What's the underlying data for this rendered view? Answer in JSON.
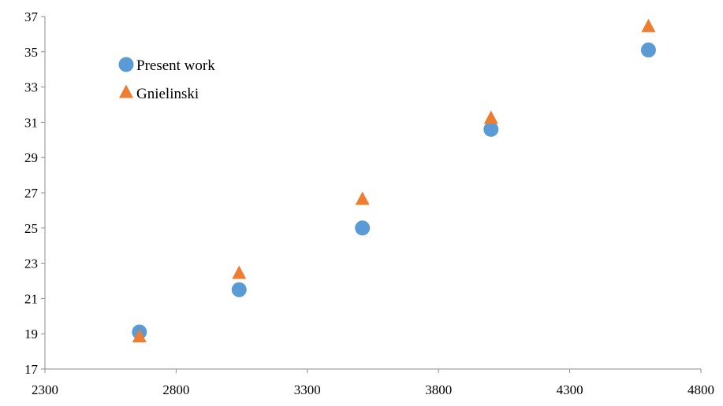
{
  "chart_data": {
    "type": "scatter",
    "title": "",
    "xlabel": "",
    "ylabel": "",
    "xlim": [
      2300,
      4800
    ],
    "ylim": [
      17,
      37
    ],
    "x_ticks": [
      "2300",
      "2800",
      "3300",
      "3800",
      "4300",
      "4800"
    ],
    "y_ticks": [
      "17",
      "19",
      "21",
      "23",
      "25",
      "27",
      "29",
      "31",
      "33",
      "35",
      "37"
    ],
    "grid": false,
    "legend_position": "top-left",
    "series": [
      {
        "name": "Present work",
        "marker": "circle",
        "color": "#5B9BD5",
        "points": [
          {
            "x": 2660,
            "y": 19.1
          },
          {
            "x": 3040,
            "y": 21.5
          },
          {
            "x": 3510,
            "y": 25.0
          },
          {
            "x": 4000,
            "y": 30.6
          },
          {
            "x": 4600,
            "y": 35.1
          }
        ]
      },
      {
        "name": "Gnielinski",
        "marker": "triangle",
        "color": "#ED7D31",
        "points": [
          {
            "x": 2660,
            "y": 18.8
          },
          {
            "x": 3040,
            "y": 22.4
          },
          {
            "x": 3510,
            "y": 26.6
          },
          {
            "x": 4000,
            "y": 31.2
          },
          {
            "x": 4600,
            "y": 36.4
          }
        ]
      }
    ]
  }
}
